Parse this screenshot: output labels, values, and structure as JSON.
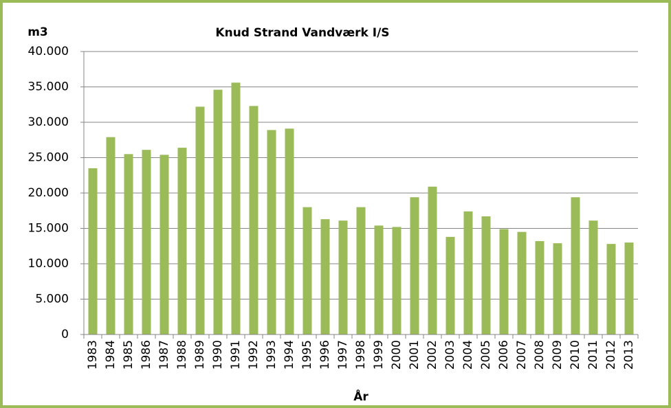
{
  "chart_data": {
    "type": "bar",
    "title": "Knud Strand Vandværk I/S",
    "y_label": "m3",
    "x_label": "År",
    "categories": [
      "1983",
      "1984",
      "1985",
      "1986",
      "1987",
      "1988",
      "1989",
      "1990",
      "1991",
      "1992",
      "1993",
      "1994",
      "1995",
      "1996",
      "1997",
      "1998",
      "1999",
      "2000",
      "2001",
      "2002",
      "2003",
      "2004",
      "2005",
      "2006",
      "2007",
      "2008",
      "2009",
      "2010",
      "2011",
      "2012",
      "2013"
    ],
    "values": [
      23500,
      27900,
      25500,
      26100,
      25400,
      26400,
      32200,
      34600,
      35600,
      32300,
      28900,
      29100,
      18000,
      16300,
      16100,
      18000,
      15400,
      15200,
      19400,
      20900,
      13800,
      17400,
      16700,
      14900,
      14500,
      13200,
      12900,
      19400,
      16100,
      12800,
      13000
    ],
    "color": "#9bbb59",
    "ylim": [
      0,
      40000
    ],
    "yticks": [
      0,
      {
        "value": 5000,
        "label": "5.000"
      },
      {
        "value": 10000,
        "label": "10.000"
      },
      {
        "value": 15000,
        "label": "15.000"
      },
      {
        "value": 20000,
        "label": "20.000"
      },
      {
        "value": 25000,
        "label": "25.000"
      },
      {
        "value": 30000,
        "label": "30.000"
      },
      {
        "value": 35000,
        "label": "35.000"
      },
      {
        "value": 40000,
        "label": "40.000"
      }
    ],
    "grid": true
  }
}
